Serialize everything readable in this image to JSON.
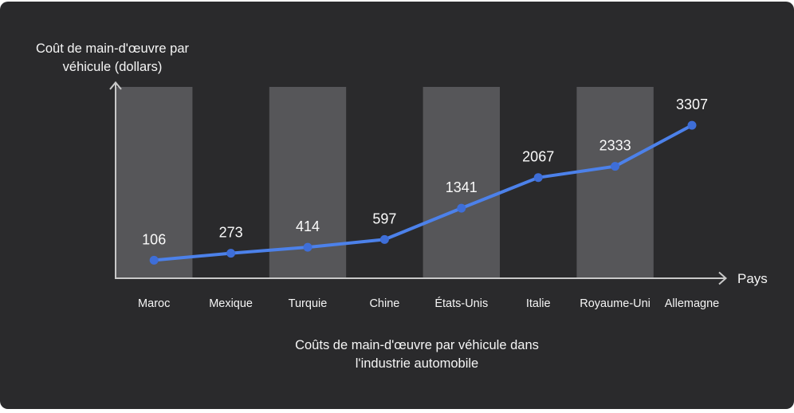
{
  "colors": {
    "card_bg": "#2A2A2C",
    "band": "#565659",
    "axis": "#C9C9C9",
    "line": "#4C81EA",
    "point": "#3E6ED8",
    "text": "#F5F5F5",
    "value_label": "#FAFAFA"
  },
  "chart_data": {
    "type": "line",
    "categories": [
      "Maroc",
      "Mexique",
      "Turquie",
      "Chine",
      "États-Unis",
      "Italie",
      "Royaume-Uni",
      "Allemagne"
    ],
    "values": [
      106,
      273,
      414,
      597,
      1341,
      2067,
      2333,
      3307
    ],
    "value_labels_shown": true,
    "striped_columns": [
      0,
      2,
      4,
      6
    ],
    "title": "Coûts de main-d'œuvre par véhicule dans l'industrie automobile",
    "title_lines": [
      "Coûts de main-d'œuvre par véhicule dans",
      "l'industrie automobile"
    ],
    "xlabel": "Pays",
    "ylabel": "Coût de main-d'œuvre par véhicule (dollars)",
    "ylabel_lines": [
      "Coût de main-d'œuvre par",
      "véhicule (dollars)"
    ],
    "ylim": [
      0,
      3500
    ],
    "grid": false,
    "legend": "none"
  }
}
